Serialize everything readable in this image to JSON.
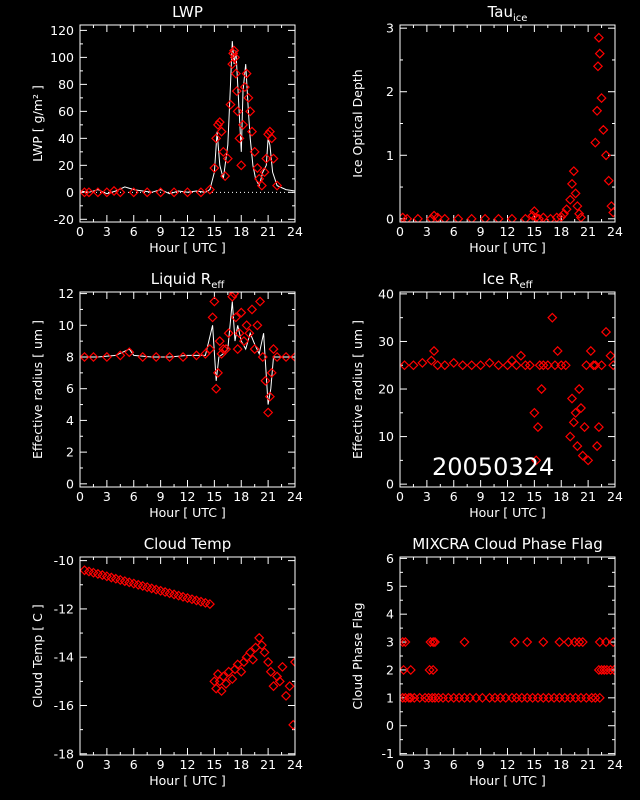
{
  "stamp": "20050324",
  "chart_data": [
    {
      "type": "scatter",
      "title": "LWP",
      "title_sub": "",
      "xlabel": "Hour [ UTC ]",
      "ylabel": "LWP [ g/m² ]",
      "xlim": [
        0,
        24
      ],
      "ylim": [
        -22,
        124
      ],
      "xticks": [
        0,
        3,
        6,
        9,
        12,
        15,
        18,
        21,
        24
      ],
      "yticks": [
        -20,
        0,
        20,
        40,
        60,
        80,
        100,
        120
      ],
      "zero_line": true,
      "line": {
        "x": [
          0,
          1,
          2,
          3,
          4,
          5,
          6,
          7,
          8,
          9,
          10,
          11,
          12,
          13,
          14,
          14.5,
          15,
          15.3,
          15.6,
          16,
          16.5,
          16.8,
          17,
          17.2,
          17.4,
          17.6,
          17.8,
          18,
          18.2,
          18.5,
          18.8,
          19,
          19.3,
          19.6,
          20,
          20.4,
          20.8,
          21,
          21.2,
          21.5,
          22,
          23,
          24
        ],
        "y": [
          1,
          0,
          2,
          -1,
          1,
          4,
          2,
          1,
          0,
          2,
          -1,
          1,
          0,
          1,
          0,
          2,
          15,
          45,
          20,
          10,
          35,
          80,
          112,
          95,
          105,
          80,
          55,
          30,
          75,
          95,
          60,
          40,
          20,
          10,
          5,
          15,
          20,
          40,
          35,
          15,
          5,
          2,
          1
        ]
      },
      "points": {
        "x": [
          0.5,
          1,
          2,
          3,
          3.8,
          4.5,
          6,
          7.5,
          9,
          10.5,
          12,
          13.5,
          14.5,
          15,
          15.2,
          15.4,
          15.6,
          15.8,
          16,
          16.2,
          16.5,
          16.8,
          17,
          17.1,
          17.2,
          17.3,
          17.4,
          17.5,
          17.6,
          17.8,
          18,
          18.2,
          18.4,
          18.6,
          18.8,
          19,
          19.2,
          19.5,
          19.8,
          20,
          20.3,
          20.6,
          20.8,
          21,
          21.2,
          21.4,
          21.6,
          22
        ],
        "y": [
          0,
          0,
          0,
          0,
          1,
          0,
          0,
          0,
          0,
          0,
          0,
          0,
          2,
          18,
          40,
          50,
          52,
          45,
          30,
          12,
          25,
          65,
          95,
          103,
          105,
          100,
          88,
          75,
          60,
          40,
          20,
          50,
          78,
          88,
          70,
          60,
          45,
          30,
          18,
          10,
          5,
          15,
          25,
          43,
          45,
          40,
          25,
          5
        ]
      }
    },
    {
      "type": "scatter",
      "title": "Tau",
      "title_sub": "ice",
      "xlabel": "Hour [ UTC ]",
      "ylabel": "Ice Optical Depth",
      "xlim": [
        0,
        24
      ],
      "ylim": [
        -0.05,
        3.05
      ],
      "xticks": [
        0,
        3,
        6,
        9,
        12,
        15,
        18,
        21,
        24
      ],
      "yticks": [
        0,
        1,
        2,
        3
      ],
      "points": {
        "x": [
          0.3,
          0.8,
          2,
          3.5,
          3.8,
          4.2,
          5,
          6.5,
          8,
          9.5,
          11,
          12.5,
          14,
          14.8,
          15,
          15.2,
          15.5,
          16,
          16.8,
          17.5,
          18,
          18.3,
          18.6,
          19,
          19.2,
          19.4,
          19.6,
          19.8,
          20,
          20.2,
          21.8,
          22,
          22.1,
          22.2,
          22.3,
          22.5,
          22.7,
          23,
          23.3,
          23.6,
          23.8
        ],
        "y": [
          0.02,
          0,
          0,
          0,
          0.05,
          0.02,
          0,
          0,
          0,
          0,
          0,
          0,
          0,
          0.05,
          0.12,
          0.02,
          0,
          0.02,
          0,
          0.02,
          0.03,
          0.08,
          0.15,
          0.3,
          0.55,
          0.75,
          0.4,
          0.2,
          0.08,
          0.02,
          1.2,
          1.7,
          2.4,
          2.85,
          2.6,
          1.9,
          1.4,
          1.0,
          0.6,
          0.2,
          0.1
        ]
      }
    },
    {
      "type": "scatter",
      "title": "Liquid R",
      "title_sub": "eff",
      "xlabel": "Hour [ UTC ]",
      "ylabel": "Effective radius [ um ]",
      "xlim": [
        0,
        24
      ],
      "ylim": [
        -0.2,
        12.1
      ],
      "xticks": [
        0,
        3,
        6,
        9,
        12,
        15,
        18,
        21,
        24
      ],
      "yticks": [
        0,
        2,
        4,
        6,
        8,
        10,
        12
      ],
      "line": {
        "x": [
          0,
          2,
          4,
          5.5,
          6,
          8,
          10,
          12,
          14,
          14.8,
          15.2,
          15.5,
          16,
          16.5,
          17,
          17.3,
          17.6,
          18,
          18.5,
          19,
          19.5,
          20,
          20.5,
          21,
          21.3,
          21.6,
          22,
          23,
          24
        ],
        "y": [
          8,
          8,
          8.1,
          8.5,
          8.1,
          8,
          8,
          8.1,
          8.1,
          10,
          6.5,
          8,
          8.2,
          8.5,
          11.5,
          9,
          10,
          9,
          8.5,
          9.5,
          8.8,
          8.2,
          9.5,
          5,
          6,
          8,
          8,
          8,
          8
        ]
      },
      "points": {
        "x": [
          0.5,
          1.5,
          3,
          4.5,
          5.5,
          7,
          8.5,
          10,
          11.5,
          13,
          14,
          14.5,
          14.8,
          15,
          15.2,
          15.4,
          15.6,
          15.8,
          16,
          16.3,
          16.6,
          17,
          17.2,
          17.4,
          17.6,
          17.8,
          18,
          18.3,
          18.6,
          18.9,
          19.2,
          19.5,
          19.8,
          20.1,
          20.4,
          20.7,
          21,
          21.2,
          21.4,
          21.6,
          22,
          23,
          24
        ],
        "y": [
          8,
          8,
          8,
          8.1,
          8.3,
          8,
          8,
          8,
          8,
          8.1,
          8.2,
          8.5,
          10.5,
          11.5,
          6,
          7,
          9,
          8.2,
          8.5,
          8.5,
          9.5,
          11.8,
          12,
          10.5,
          8.5,
          9.5,
          10.8,
          9,
          10,
          9.5,
          11,
          8.5,
          10,
          11.5,
          8,
          6.5,
          4.5,
          5.5,
          7,
          8.5,
          8,
          8,
          8
        ]
      }
    },
    {
      "type": "scatter",
      "title": "Ice R",
      "title_sub": "eff",
      "xlabel": "Hour [ UTC ]",
      "ylabel": "Effective radius [ um ]",
      "xlim": [
        0,
        24
      ],
      "ylim": [
        -0.6,
        40.4
      ],
      "xticks": [
        0,
        3,
        6,
        9,
        12,
        15,
        18,
        21,
        24
      ],
      "yticks": [
        0,
        10,
        20,
        30,
        40
      ],
      "points": {
        "x": [
          0.5,
          1.5,
          2.5,
          3.5,
          3.8,
          4.2,
          5,
          6,
          7,
          8,
          9,
          10,
          11,
          12,
          12.5,
          13,
          13.5,
          14,
          14.5,
          15,
          15.2,
          15.4,
          15.6,
          15.8,
          16,
          16.5,
          17,
          17.3,
          17.6,
          18,
          18.5,
          19,
          19.2,
          19.4,
          19.6,
          19.8,
          20,
          20.2,
          20.4,
          20.6,
          20.8,
          21,
          21.3,
          21.6,
          21.8,
          22,
          22.2,
          22.5,
          23,
          23.5,
          23.8
        ],
        "y": [
          25,
          25,
          25.5,
          26,
          28,
          25,
          25,
          25.5,
          25,
          25,
          25,
          25.5,
          25,
          25,
          26,
          25,
          27,
          25,
          25,
          15,
          5,
          12,
          25,
          20,
          25,
          25,
          35,
          25,
          28,
          25,
          25,
          10,
          18,
          13,
          15,
          8,
          20,
          16,
          6,
          12,
          25,
          5,
          28,
          25,
          25,
          8,
          12,
          25,
          32,
          27,
          25
        ]
      }
    },
    {
      "type": "scatter",
      "title": "Cloud Temp",
      "title_sub": "",
      "xlabel": "Hour [ UTC ]",
      "ylabel": "Cloud Temp [ C ]",
      "xlim": [
        0,
        24
      ],
      "ylim": [
        -18.05,
        -9.85
      ],
      "xticks": [
        0,
        3,
        6,
        9,
        12,
        15,
        18,
        21,
        24
      ],
      "yticks": [
        -18,
        -16,
        -14,
        -12,
        -10
      ],
      "points": {
        "x": [
          0.5,
          1,
          1.5,
          2,
          2.5,
          3,
          3.5,
          4,
          4.5,
          5,
          5.5,
          6,
          6.5,
          7,
          7.5,
          8,
          8.5,
          9,
          9.5,
          10,
          10.5,
          11,
          11.5,
          12,
          12.5,
          13,
          13.5,
          14,
          14.5,
          15,
          15.2,
          15.4,
          15.6,
          15.8,
          16,
          16.3,
          16.6,
          17,
          17.3,
          17.6,
          18,
          18.3,
          18.6,
          19,
          19.3,
          19.6,
          20,
          20.3,
          20.6,
          21,
          21.3,
          21.6,
          22,
          22.3,
          22.6,
          23,
          23.4,
          23.8,
          24
        ],
        "y": [
          -10.4,
          -10.45,
          -10.5,
          -10.55,
          -10.6,
          -10.65,
          -10.7,
          -10.75,
          -10.8,
          -10.85,
          -10.9,
          -10.95,
          -11.0,
          -11.05,
          -11.1,
          -11.15,
          -11.2,
          -11.25,
          -11.3,
          -11.35,
          -11.4,
          -11.45,
          -11.5,
          -11.55,
          -11.6,
          -11.65,
          -11.7,
          -11.75,
          -11.8,
          -15.0,
          -15.3,
          -14.7,
          -15.0,
          -15.4,
          -14.8,
          -15.1,
          -14.6,
          -14.9,
          -14.5,
          -14.3,
          -14.6,
          -14.2,
          -14.0,
          -13.8,
          -14.1,
          -13.6,
          -13.2,
          -13.5,
          -13.8,
          -14.2,
          -14.6,
          -15.2,
          -14.8,
          -15.0,
          -14.4,
          -15.6,
          -15.2,
          -16.8,
          -14.2
        ]
      }
    },
    {
      "type": "scatter",
      "title": "MIXCRA Cloud Phase Flag",
      "title_sub": "",
      "xlabel": "Hour [ UTC ]",
      "ylabel": "Cloud Phase Flag",
      "xlim": [
        0,
        24
      ],
      "ylim": [
        -1.05,
        6.05
      ],
      "xticks": [
        0,
        3,
        6,
        9,
        12,
        15,
        18,
        21,
        24
      ],
      "yticks": [
        -1,
        0,
        1,
        2,
        3,
        4,
        5,
        6
      ],
      "points": {
        "x": [
          0.3,
          0.6,
          1,
          1.2,
          1.6,
          2.2,
          2.8,
          3.2,
          3.6,
          3.9,
          4.3,
          4.8,
          5.4,
          6,
          6.6,
          7.2,
          7.8,
          8.5,
          9.2,
          10,
          10.6,
          11.2,
          11.8,
          12.5,
          13,
          13.6,
          14.2,
          14.8,
          15.4,
          16,
          16.6,
          17.2,
          17.8,
          18.4,
          19,
          19.6,
          20.2,
          20.8,
          21.4,
          21.8,
          0.4,
          1.2,
          3.3,
          3.7,
          0.3,
          0.6,
          3.4,
          3.7,
          3.9,
          7.2,
          12.8,
          14.2,
          16,
          17.8,
          18.8,
          19.5,
          20,
          20.4,
          22.2,
          22.5,
          22.8,
          23.1,
          23.5,
          23.9,
          22.3,
          23.0,
          23.8,
          22.3
        ],
        "y": [
          1,
          1,
          1,
          1,
          1,
          1,
          1,
          1,
          1,
          1,
          1,
          1,
          1,
          1,
          1,
          1,
          1,
          1,
          1,
          1,
          1,
          1,
          1,
          1,
          1,
          1,
          1,
          1,
          1,
          1,
          1,
          1,
          1,
          1,
          1,
          1,
          1,
          1,
          1,
          1,
          2,
          2,
          2,
          2,
          3,
          3,
          3,
          3,
          3,
          3,
          3,
          3,
          3,
          3,
          3,
          3,
          3,
          3,
          2,
          2,
          2,
          2,
          2,
          2,
          3,
          3,
          3,
          1
        ]
      }
    }
  ]
}
